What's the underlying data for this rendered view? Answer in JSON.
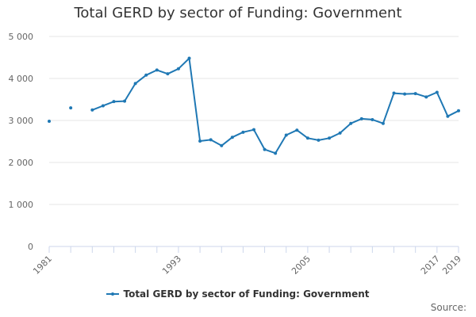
{
  "title": "Total GERD by sector of Funding: Government",
  "source_label": "Source:",
  "colors": {
    "series": "#1f78b4",
    "grid": "#e6e6e6",
    "axis": "#ccd6eb",
    "text": "#333333",
    "tick_text": "#666666"
  },
  "chart_data": {
    "type": "line",
    "title": "Total GERD by sector of Funding: Government",
    "xlabel": "",
    "ylabel": "",
    "xlim": [
      1981,
      2019
    ],
    "ylim": [
      0,
      5000
    ],
    "y_ticks": [
      0,
      1000,
      2000,
      3000,
      4000,
      5000
    ],
    "y_tick_labels": [
      "0",
      "1 000",
      "2 000",
      "3 000",
      "4 000",
      "5 000"
    ],
    "x_tick_labels": [
      "1981",
      "1993",
      "2005",
      "2017",
      "2019"
    ],
    "x_minor_ticks": [
      1981,
      1983,
      1985,
      1987,
      1989,
      1991,
      1993,
      1995,
      1997,
      1999,
      2001,
      2003,
      2005,
      2007,
      2009,
      2011,
      2013,
      2015,
      2017,
      2019
    ],
    "grid": true,
    "legend_position": "bottom-center",
    "series": [
      {
        "name": "Total GERD by sector of Funding: Government",
        "x": [
          1981,
          1982,
          1983,
          1984,
          1985,
          1986,
          1987,
          1988,
          1989,
          1990,
          1991,
          1992,
          1993,
          1994,
          1995,
          1996,
          1997,
          1998,
          1999,
          2000,
          2001,
          2002,
          2003,
          2004,
          2005,
          2006,
          2007,
          2008,
          2009,
          2010,
          2011,
          2012,
          2013,
          2014,
          2015,
          2016,
          2017,
          2018,
          2019
        ],
        "values": [
          2980,
          null,
          3300,
          null,
          3250,
          3350,
          3450,
          3460,
          3880,
          4080,
          4200,
          4110,
          4230,
          4480,
          2510,
          2540,
          2400,
          2600,
          2720,
          2780,
          2310,
          2220,
          2650,
          2770,
          2580,
          2530,
          2580,
          2700,
          2930,
          3040,
          3020,
          2930,
          3650,
          3630,
          3640,
          3560,
          3670,
          3100,
          3230
        ]
      }
    ]
  }
}
